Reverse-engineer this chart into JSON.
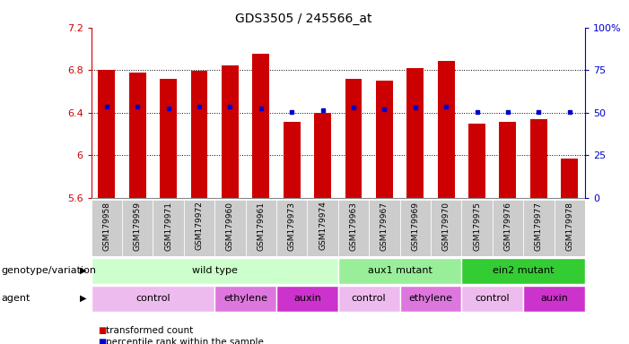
{
  "title": "GDS3505 / 245566_at",
  "samples": [
    "GSM179958",
    "GSM179959",
    "GSM179971",
    "GSM179972",
    "GSM179960",
    "GSM179961",
    "GSM179973",
    "GSM179974",
    "GSM179963",
    "GSM179967",
    "GSM179969",
    "GSM179970",
    "GSM179975",
    "GSM179976",
    "GSM179977",
    "GSM179978"
  ],
  "bar_values": [
    6.8,
    6.78,
    6.72,
    6.79,
    6.84,
    6.95,
    6.31,
    6.4,
    6.72,
    6.7,
    6.82,
    6.89,
    6.3,
    6.31,
    6.34,
    5.97
  ],
  "blue_values": [
    6.46,
    6.46,
    6.44,
    6.46,
    6.46,
    6.44,
    6.41,
    6.42,
    6.45,
    6.43,
    6.45,
    6.46,
    6.41,
    6.41,
    6.41,
    6.41
  ],
  "bar_base": 5.6,
  "ylim_left": [
    5.6,
    7.2
  ],
  "ylim_right": [
    0,
    100
  ],
  "yticks_left": [
    5.6,
    6.0,
    6.4,
    6.8,
    7.2
  ],
  "yticks_right": [
    0,
    25,
    50,
    75,
    100
  ],
  "ytick_labels_left": [
    "5.6",
    "6",
    "6.4",
    "6.8",
    "7.2"
  ],
  "ytick_labels_right": [
    "0",
    "25",
    "50",
    "75",
    "100%"
  ],
  "bar_color": "#cc0000",
  "blue_color": "#0000cc",
  "genotype_groups": [
    {
      "label": "wild type",
      "start": 0,
      "end": 8,
      "color": "#ccffcc"
    },
    {
      "label": "aux1 mutant",
      "start": 8,
      "end": 12,
      "color": "#99ee99"
    },
    {
      "label": "ein2 mutant",
      "start": 12,
      "end": 16,
      "color": "#33cc33"
    }
  ],
  "agent_groups": [
    {
      "label": "control",
      "start": 0,
      "end": 4,
      "color": "#eebbee"
    },
    {
      "label": "ethylene",
      "start": 4,
      "end": 6,
      "color": "#dd77dd"
    },
    {
      "label": "auxin",
      "start": 6,
      "end": 8,
      "color": "#cc33cc"
    },
    {
      "label": "control",
      "start": 8,
      "end": 10,
      "color": "#eebbee"
    },
    {
      "label": "ethylene",
      "start": 10,
      "end": 12,
      "color": "#dd77dd"
    },
    {
      "label": "control",
      "start": 12,
      "end": 14,
      "color": "#eebbee"
    },
    {
      "label": "auxin",
      "start": 14,
      "end": 16,
      "color": "#cc33cc"
    }
  ],
  "legend_items": [
    {
      "label": "transformed count",
      "color": "#cc0000"
    },
    {
      "label": "percentile rank within the sample",
      "color": "#0000cc"
    }
  ],
  "row_labels": [
    "genotype/variation",
    "agent"
  ],
  "tick_fontsize": 8,
  "title_fontsize": 10,
  "sample_fontsize": 6.5,
  "row_label_fontsize": 8,
  "group_label_fontsize": 8,
  "legend_fontsize": 7.5
}
